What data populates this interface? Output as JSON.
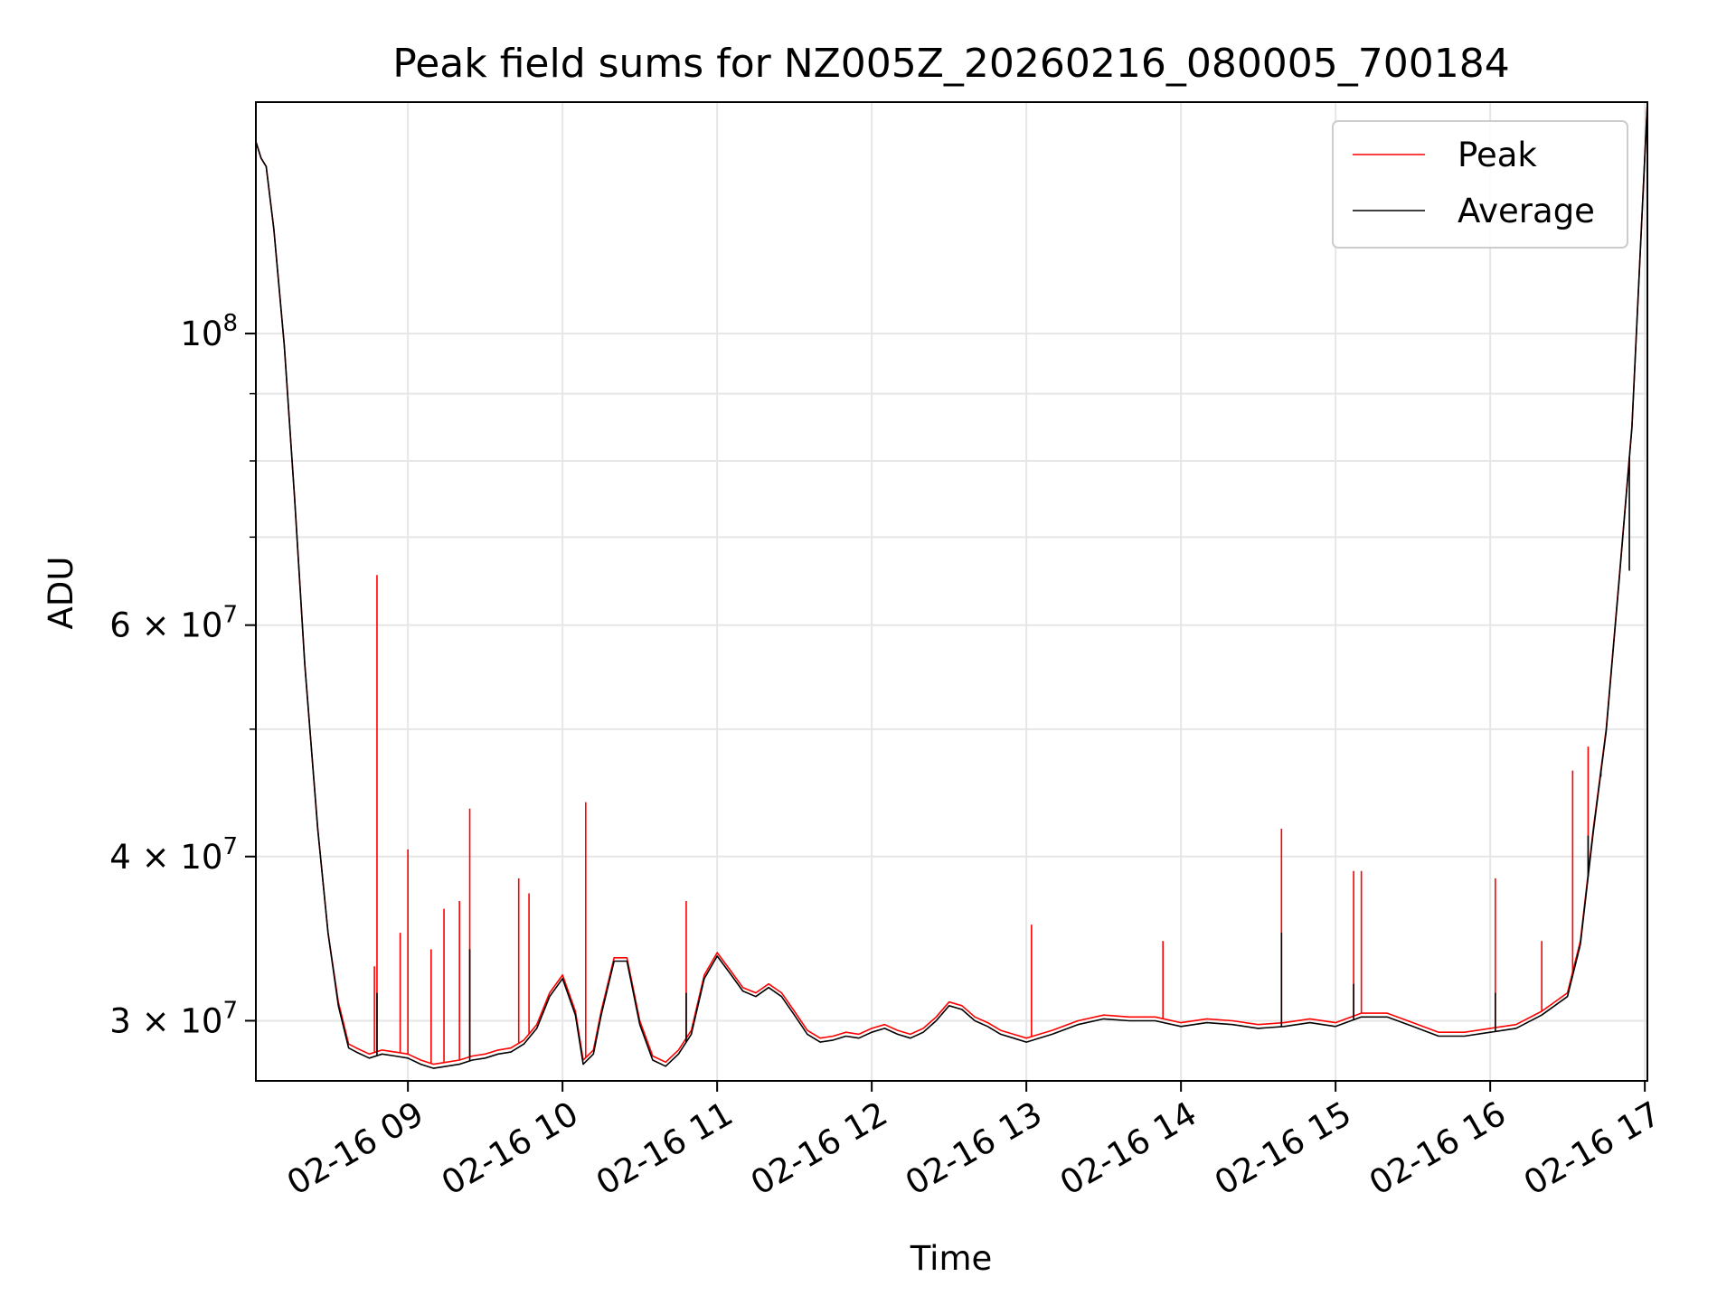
{
  "chart_data": {
    "type": "line",
    "title": "Peak field sums for NZ005Z_20260216_080005_700184",
    "xlabel": "Time",
    "ylabel": "ADU",
    "y_scale": "log",
    "xlim": [
      "2026-02-16T08:01",
      "2026-02-16T17:01"
    ],
    "ylim": [
      27000000,
      150000000
    ],
    "x_ticks": [
      {
        "value": "2026-02-16T09:00",
        "label": "02-16 09"
      },
      {
        "value": "2026-02-16T10:00",
        "label": "02-16 10"
      },
      {
        "value": "2026-02-16T11:00",
        "label": "02-16 11"
      },
      {
        "value": "2026-02-16T12:00",
        "label": "02-16 12"
      },
      {
        "value": "2026-02-16T13:00",
        "label": "02-16 13"
      },
      {
        "value": "2026-02-16T14:00",
        "label": "02-16 14"
      },
      {
        "value": "2026-02-16T15:00",
        "label": "02-16 15"
      },
      {
        "value": "2026-02-16T16:00",
        "label": "02-16 16"
      },
      {
        "value": "2026-02-16T17:00",
        "label": "02-16 17"
      }
    ],
    "y_ticks": [
      {
        "value": 30000000,
        "base": "3 × 10",
        "exp": "7"
      },
      {
        "value": 40000000,
        "base": "4 × 10",
        "exp": "7"
      },
      {
        "value": 60000000,
        "base": "6 × 10",
        "exp": "7"
      },
      {
        "value": 100000000,
        "base": "10",
        "exp": "8"
      }
    ],
    "y_minor_ticks": [
      50000000,
      70000000,
      80000000,
      90000000
    ],
    "grid": true,
    "legend_position": "top-right",
    "series": [
      {
        "name": "Peak",
        "color": "#ff0000",
        "x": [
          "2026-02-16T08:01",
          "2026-02-16T08:03",
          "2026-02-16T08:05",
          "2026-02-16T08:08",
          "2026-02-16T08:12",
          "2026-02-16T08:16",
          "2026-02-16T08:20",
          "2026-02-16T08:25",
          "2026-02-16T08:29",
          "2026-02-16T08:33",
          "2026-02-16T08:37",
          "2026-02-16T08:40",
          "2026-02-16T08:45",
          "2026-02-16T08:50",
          "2026-02-16T08:55",
          "2026-02-16T09:00",
          "2026-02-16T09:05",
          "2026-02-16T09:10",
          "2026-02-16T09:15",
          "2026-02-16T09:20",
          "2026-02-16T09:25",
          "2026-02-16T09:30",
          "2026-02-16T09:35",
          "2026-02-16T09:40",
          "2026-02-16T09:45",
          "2026-02-16T09:50",
          "2026-02-16T09:55",
          "2026-02-16T10:00",
          "2026-02-16T10:05",
          "2026-02-16T10:08",
          "2026-02-16T10:12",
          "2026-02-16T10:15",
          "2026-02-16T10:20",
          "2026-02-16T10:25",
          "2026-02-16T10:30",
          "2026-02-16T10:35",
          "2026-02-16T10:40",
          "2026-02-16T10:45",
          "2026-02-16T10:50",
          "2026-02-16T10:55",
          "2026-02-16T11:00",
          "2026-02-16T11:05",
          "2026-02-16T11:10",
          "2026-02-16T11:15",
          "2026-02-16T11:20",
          "2026-02-16T11:25",
          "2026-02-16T11:30",
          "2026-02-16T11:35",
          "2026-02-16T11:40",
          "2026-02-16T11:45",
          "2026-02-16T11:50",
          "2026-02-16T11:55",
          "2026-02-16T12:00",
          "2026-02-16T12:05",
          "2026-02-16T12:10",
          "2026-02-16T12:15",
          "2026-02-16T12:20",
          "2026-02-16T12:25",
          "2026-02-16T12:30",
          "2026-02-16T12:35",
          "2026-02-16T12:40",
          "2026-02-16T12:45",
          "2026-02-16T12:50",
          "2026-02-16T12:55",
          "2026-02-16T13:00",
          "2026-02-16T13:10",
          "2026-02-16T13:20",
          "2026-02-16T13:30",
          "2026-02-16T13:40",
          "2026-02-16T13:50",
          "2026-02-16T14:00",
          "2026-02-16T14:10",
          "2026-02-16T14:20",
          "2026-02-16T14:30",
          "2026-02-16T14:40",
          "2026-02-16T14:50",
          "2026-02-16T15:00",
          "2026-02-16T15:10",
          "2026-02-16T15:20",
          "2026-02-16T15:30",
          "2026-02-16T15:40",
          "2026-02-16T15:50",
          "2026-02-16T16:00",
          "2026-02-16T16:10",
          "2026-02-16T16:20",
          "2026-02-16T16:30",
          "2026-02-16T16:35",
          "2026-02-16T16:40",
          "2026-02-16T16:45",
          "2026-02-16T16:50",
          "2026-02-16T16:55",
          "2026-02-16T17:01"
        ],
        "values": [
          140000000,
          136000000,
          134000000,
          120000000,
          98000000,
          75000000,
          56000000,
          42000000,
          35000000,
          31000000,
          28800000,
          28600000,
          28300000,
          28500000,
          28400000,
          28300000,
          28000000,
          27800000,
          27900000,
          28000000,
          28200000,
          28300000,
          28500000,
          28600000,
          29000000,
          29800000,
          31500000,
          32500000,
          30500000,
          28000000,
          28500000,
          30500000,
          33500000,
          33500000,
          30000000,
          28200000,
          27900000,
          28500000,
          29500000,
          32500000,
          33800000,
          32800000,
          31800000,
          31500000,
          32000000,
          31500000,
          30500000,
          29500000,
          29100000,
          29200000,
          29400000,
          29300000,
          29600000,
          29800000,
          29500000,
          29300000,
          29600000,
          30200000,
          31000000,
          30800000,
          30200000,
          29900000,
          29500000,
          29300000,
          29100000,
          29500000,
          30000000,
          30300000,
          30200000,
          30200000,
          29900000,
          30100000,
          30000000,
          29800000,
          29900000,
          30100000,
          29900000,
          30400000,
          30400000,
          29900000,
          29400000,
          29400000,
          29600000,
          29800000,
          30500000,
          31500000,
          34500000,
          42000000,
          50000000,
          65000000,
          85000000,
          150000000
        ],
        "spikes": [
          {
            "x": "2026-02-16T08:47",
            "value": 33000000
          },
          {
            "x": "2026-02-16T08:48",
            "value": 65500000
          },
          {
            "x": "2026-02-16T08:57",
            "value": 35000000
          },
          {
            "x": "2026-02-16T09:00",
            "value": 40500000
          },
          {
            "x": "2026-02-16T09:09",
            "value": 34000000
          },
          {
            "x": "2026-02-16T09:14",
            "value": 36500000
          },
          {
            "x": "2026-02-16T09:20",
            "value": 37000000
          },
          {
            "x": "2026-02-16T09:24",
            "value": 43500000
          },
          {
            "x": "2026-02-16T09:43",
            "value": 38500000
          },
          {
            "x": "2026-02-16T09:47",
            "value": 37500000
          },
          {
            "x": "2026-02-16T10:09",
            "value": 44000000
          },
          {
            "x": "2026-02-16T10:48",
            "value": 37000000
          },
          {
            "x": "2026-02-16T13:02",
            "value": 35500000
          },
          {
            "x": "2026-02-16T13:53",
            "value": 34500000
          },
          {
            "x": "2026-02-16T14:39",
            "value": 42000000
          },
          {
            "x": "2026-02-16T15:07",
            "value": 39000000
          },
          {
            "x": "2026-02-16T15:10",
            "value": 39000000
          },
          {
            "x": "2026-02-16T16:02",
            "value": 38500000
          },
          {
            "x": "2026-02-16T16:20",
            "value": 34500000
          },
          {
            "x": "2026-02-16T16:32",
            "value": 46500000
          },
          {
            "x": "2026-02-16T16:38",
            "value": 48500000
          },
          {
            "x": "2026-02-16T16:43",
            "value": 46000000
          },
          {
            "x": "2026-02-16T16:54",
            "value": 78000000
          }
        ]
      },
      {
        "name": "Average",
        "color": "#000000",
        "x": [
          "2026-02-16T08:01",
          "2026-02-16T08:03",
          "2026-02-16T08:05",
          "2026-02-16T08:08",
          "2026-02-16T08:12",
          "2026-02-16T08:16",
          "2026-02-16T08:20",
          "2026-02-16T08:25",
          "2026-02-16T08:29",
          "2026-02-16T08:33",
          "2026-02-16T08:37",
          "2026-02-16T08:40",
          "2026-02-16T08:45",
          "2026-02-16T08:50",
          "2026-02-16T08:55",
          "2026-02-16T09:00",
          "2026-02-16T09:05",
          "2026-02-16T09:10",
          "2026-02-16T09:15",
          "2026-02-16T09:20",
          "2026-02-16T09:25",
          "2026-02-16T09:30",
          "2026-02-16T09:35",
          "2026-02-16T09:40",
          "2026-02-16T09:45",
          "2026-02-16T09:50",
          "2026-02-16T09:55",
          "2026-02-16T10:00",
          "2026-02-16T10:05",
          "2026-02-16T10:08",
          "2026-02-16T10:12",
          "2026-02-16T10:15",
          "2026-02-16T10:20",
          "2026-02-16T10:25",
          "2026-02-16T10:30",
          "2026-02-16T10:35",
          "2026-02-16T10:40",
          "2026-02-16T10:45",
          "2026-02-16T10:50",
          "2026-02-16T10:55",
          "2026-02-16T11:00",
          "2026-02-16T11:05",
          "2026-02-16T11:10",
          "2026-02-16T11:15",
          "2026-02-16T11:20",
          "2026-02-16T11:25",
          "2026-02-16T11:30",
          "2026-02-16T11:35",
          "2026-02-16T11:40",
          "2026-02-16T11:45",
          "2026-02-16T11:50",
          "2026-02-16T11:55",
          "2026-02-16T12:00",
          "2026-02-16T12:05",
          "2026-02-16T12:10",
          "2026-02-16T12:15",
          "2026-02-16T12:20",
          "2026-02-16T12:25",
          "2026-02-16T12:30",
          "2026-02-16T12:35",
          "2026-02-16T12:40",
          "2026-02-16T12:45",
          "2026-02-16T12:50",
          "2026-02-16T12:55",
          "2026-02-16T13:00",
          "2026-02-16T13:10",
          "2026-02-16T13:20",
          "2026-02-16T13:30",
          "2026-02-16T13:40",
          "2026-02-16T13:50",
          "2026-02-16T14:00",
          "2026-02-16T14:10",
          "2026-02-16T14:20",
          "2026-02-16T14:30",
          "2026-02-16T14:40",
          "2026-02-16T14:50",
          "2026-02-16T15:00",
          "2026-02-16T15:10",
          "2026-02-16T15:20",
          "2026-02-16T15:30",
          "2026-02-16T15:40",
          "2026-02-16T15:50",
          "2026-02-16T16:00",
          "2026-02-16T16:10",
          "2026-02-16T16:20",
          "2026-02-16T16:30",
          "2026-02-16T16:35",
          "2026-02-16T16:40",
          "2026-02-16T16:45",
          "2026-02-16T16:50",
          "2026-02-16T16:55",
          "2026-02-16T17:01"
        ],
        "values": [
          140000000,
          136000000,
          134000000,
          120000000,
          98000000,
          75000000,
          56000000,
          42000000,
          35000000,
          30800000,
          28600000,
          28400000,
          28100000,
          28300000,
          28200000,
          28100000,
          27800000,
          27600000,
          27700000,
          27800000,
          28000000,
          28100000,
          28300000,
          28400000,
          28800000,
          29600000,
          31300000,
          32300000,
          30300000,
          27800000,
          28300000,
          30300000,
          33300000,
          33300000,
          29800000,
          28000000,
          27700000,
          28300000,
          29300000,
          32300000,
          33600000,
          32600000,
          31600000,
          31300000,
          31800000,
          31300000,
          30300000,
          29300000,
          28900000,
          29000000,
          29200000,
          29100000,
          29400000,
          29600000,
          29300000,
          29100000,
          29400000,
          30000000,
          30800000,
          30600000,
          30000000,
          29700000,
          29300000,
          29100000,
          28900000,
          29300000,
          29800000,
          30100000,
          30000000,
          30000000,
          29700000,
          29900000,
          29800000,
          29600000,
          29700000,
          29900000,
          29700000,
          30200000,
          30200000,
          29700000,
          29200000,
          29200000,
          29400000,
          29600000,
          30300000,
          31300000,
          34300000,
          41800000,
          49800000,
          64800000,
          84800000,
          150000000
        ],
        "spikes": [
          {
            "x": "2026-02-16T08:48",
            "value": 31500000
          },
          {
            "x": "2026-02-16T09:24",
            "value": 34000000
          },
          {
            "x": "2026-02-16T10:48",
            "value": 31500000
          },
          {
            "x": "2026-02-16T14:39",
            "value": 35000000
          },
          {
            "x": "2026-02-16T15:07",
            "value": 32000000
          },
          {
            "x": "2026-02-16T16:02",
            "value": 31500000
          },
          {
            "x": "2026-02-16T16:38",
            "value": 41500000
          },
          {
            "x": "2026-02-16T16:54",
            "value": 66000000
          }
        ]
      }
    ]
  }
}
